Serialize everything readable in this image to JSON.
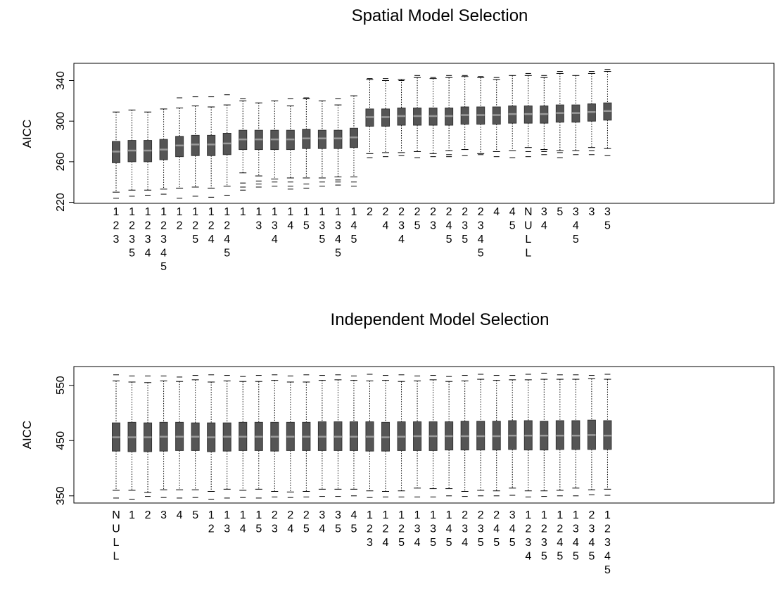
{
  "chart_data": [
    {
      "type": "box",
      "title": "Spatial Model Selection",
      "xlabel": "",
      "ylabel": "AICC",
      "ylim": [
        219,
        357
      ],
      "yticks": [
        220,
        260,
        300,
        340
      ],
      "grid": false,
      "categories": [
        "123",
        "1235",
        "1234",
        "12345",
        "12",
        "125",
        "124",
        "1245",
        "1",
        "13",
        "134",
        "14",
        "15",
        "135",
        "1345",
        "145",
        "2",
        "24",
        "234",
        "25",
        "23",
        "245",
        "235",
        "2345",
        "4",
        "45",
        "NULL",
        "34",
        "5",
        "345",
        "3",
        "35"
      ],
      "boxes": [
        {
          "min": 230,
          "q1": 259,
          "median": 270,
          "q3": 280,
          "max": 309,
          "outliers": [
            224
          ]
        },
        {
          "min": 232,
          "q1": 260,
          "median": 271,
          "q3": 281,
          "max": 311,
          "outliers": [
            226
          ]
        },
        {
          "min": 232,
          "q1": 260,
          "median": 271,
          "q3": 281,
          "max": 309,
          "outliers": [
            227
          ]
        },
        {
          "min": 233,
          "q1": 262,
          "median": 272,
          "q3": 282,
          "max": 312,
          "outliers": [
            228
          ]
        },
        {
          "min": 234,
          "q1": 265,
          "median": 276,
          "q3": 285,
          "max": 313,
          "outliers": [
            224,
            323
          ]
        },
        {
          "min": 235,
          "q1": 266,
          "median": 277,
          "q3": 286,
          "max": 315,
          "outliers": [
            226,
            324
          ]
        },
        {
          "min": 234,
          "q1": 266,
          "median": 277,
          "q3": 286,
          "max": 314,
          "outliers": [
            225,
            324
          ]
        },
        {
          "min": 236,
          "q1": 267,
          "median": 278,
          "q3": 288,
          "max": 316,
          "outliers": [
            227,
            326
          ]
        },
        {
          "min": 249,
          "q1": 272,
          "median": 282,
          "q3": 291,
          "max": 320,
          "outliers": [
            239,
            235,
            232,
            322
          ]
        },
        {
          "min": 246,
          "q1": 272,
          "median": 282,
          "q3": 291,
          "max": 318,
          "outliers": [
            241,
            238,
            235
          ]
        },
        {
          "min": 243,
          "q1": 272,
          "median": 282,
          "q3": 291,
          "max": 320,
          "outliers": [
            236,
            240
          ]
        },
        {
          "min": 244,
          "q1": 272,
          "median": 282,
          "q3": 291,
          "max": 315,
          "outliers": [
            240,
            236,
            233,
            322
          ]
        },
        {
          "min": 244,
          "q1": 273,
          "median": 283,
          "q3": 292,
          "max": 322,
          "outliers": [
            238,
            234,
            323
          ]
        },
        {
          "min": 244,
          "q1": 273,
          "median": 283,
          "q3": 291,
          "max": 320,
          "outliers": [
            240,
            236
          ]
        },
        {
          "min": 245,
          "q1": 273,
          "median": 283,
          "q3": 291,
          "max": 316,
          "outliers": [
            240,
            237,
            242,
            322
          ]
        },
        {
          "min": 245,
          "q1": 274,
          "median": 284,
          "q3": 293,
          "max": 325,
          "outliers": [
            240,
            236
          ]
        },
        {
          "min": 268,
          "q1": 295,
          "median": 304,
          "q3": 312,
          "max": 341,
          "outliers": [
            264,
            342
          ]
        },
        {
          "min": 269,
          "q1": 295,
          "median": 304,
          "q3": 312,
          "max": 340,
          "outliers": [
            265,
            342
          ]
        },
        {
          "min": 269,
          "q1": 296,
          "median": 305,
          "q3": 313,
          "max": 341,
          "outliers": [
            266,
            340
          ]
        },
        {
          "min": 270,
          "q1": 296,
          "median": 305,
          "q3": 313,
          "max": 343,
          "outliers": [
            264,
            345
          ]
        },
        {
          "min": 268,
          "q1": 296,
          "median": 305,
          "q3": 313,
          "max": 342,
          "outliers": [
            265,
            343
          ]
        },
        {
          "min": 271,
          "q1": 296,
          "median": 305,
          "q3": 313,
          "max": 343,
          "outliers": [
            265,
            267,
            345
          ]
        },
        {
          "min": 272,
          "q1": 297,
          "median": 306,
          "q3": 314,
          "max": 344,
          "outliers": [
            266,
            345
          ]
        },
        {
          "min": 268,
          "q1": 297,
          "median": 306,
          "q3": 314,
          "max": 343,
          "outliers": [
            267,
            344
          ]
        },
        {
          "min": 270,
          "q1": 297,
          "median": 306,
          "q3": 314,
          "max": 341,
          "outliers": [
            265,
            343
          ]
        },
        {
          "min": 271,
          "q1": 298,
          "median": 307,
          "q3": 315,
          "max": 345,
          "outliers": [
            264
          ]
        },
        {
          "min": 274,
          "q1": 298,
          "median": 307,
          "q3": 315,
          "max": 345,
          "outliers": [
            265,
            270,
            347
          ]
        },
        {
          "min": 272,
          "q1": 298,
          "median": 307,
          "q3": 315,
          "max": 343,
          "outliers": [
            267,
            270,
            345
          ]
        },
        {
          "min": 271,
          "q1": 299,
          "median": 308,
          "q3": 316,
          "max": 347,
          "outliers": [
            264,
            269,
            349
          ]
        },
        {
          "min": 271,
          "q1": 299,
          "median": 308,
          "q3": 316,
          "max": 345,
          "outliers": [
            267
          ]
        },
        {
          "min": 274,
          "q1": 300,
          "median": 309,
          "q3": 317,
          "max": 347,
          "outliers": [
            267,
            271,
            349
          ]
        },
        {
          "min": 273,
          "q1": 301,
          "median": 310,
          "q3": 318,
          "max": 349,
          "outliers": [
            266,
            351
          ]
        }
      ]
    },
    {
      "type": "box",
      "title": "Independent Model Selection",
      "xlabel": "",
      "ylabel": "AICC",
      "ylim": [
        337,
        584
      ],
      "yticks": [
        350,
        450,
        550
      ],
      "grid": false,
      "categories": [
        "NULL",
        "1",
        "2",
        "3",
        "4",
        "5",
        "12",
        "13",
        "14",
        "15",
        "23",
        "24",
        "25",
        "34",
        "35",
        "45",
        "123",
        "124",
        "125",
        "134",
        "135",
        "145",
        "234",
        "235",
        "245",
        "345",
        "1234",
        "1235",
        "1245",
        "1345",
        "2345",
        "12345"
      ],
      "boxes": [
        {
          "min": 360,
          "q1": 431,
          "median": 456,
          "q3": 482,
          "max": 558,
          "outliers": [
            346,
            569
          ]
        },
        {
          "min": 360,
          "q1": 430,
          "median": 456,
          "q3": 483,
          "max": 556,
          "outliers": [
            344,
            567
          ]
        },
        {
          "min": 356,
          "q1": 430,
          "median": 456,
          "q3": 482,
          "max": 555,
          "outliers": [
            349,
            567
          ]
        },
        {
          "min": 361,
          "q1": 431,
          "median": 457,
          "q3": 483,
          "max": 558,
          "outliers": [
            347,
            567
          ]
        },
        {
          "min": 361,
          "q1": 432,
          "median": 457,
          "q3": 483,
          "max": 557,
          "outliers": [
            346,
            565
          ]
        },
        {
          "min": 361,
          "q1": 432,
          "median": 457,
          "q3": 482,
          "max": 560,
          "outliers": [
            347,
            568
          ]
        },
        {
          "min": 358,
          "q1": 430,
          "median": 456,
          "q3": 482,
          "max": 556,
          "outliers": [
            344,
            569
          ]
        },
        {
          "min": 362,
          "q1": 431,
          "median": 457,
          "q3": 482,
          "max": 558,
          "outliers": [
            346,
            568
          ]
        },
        {
          "min": 360,
          "q1": 432,
          "median": 457,
          "q3": 483,
          "max": 557,
          "outliers": [
            347,
            566
          ]
        },
        {
          "min": 362,
          "q1": 432,
          "median": 457,
          "q3": 483,
          "max": 557,
          "outliers": [
            346,
            568
          ]
        },
        {
          "min": 358,
          "q1": 431,
          "median": 457,
          "q3": 483,
          "max": 559,
          "outliers": [
            348,
            569
          ]
        },
        {
          "min": 357,
          "q1": 432,
          "median": 457,
          "q3": 483,
          "max": 556,
          "outliers": [
            347,
            567
          ]
        },
        {
          "min": 358,
          "q1": 432,
          "median": 457,
          "q3": 483,
          "max": 556,
          "outliers": [
            348,
            569
          ]
        },
        {
          "min": 362,
          "q1": 432,
          "median": 457,
          "q3": 484,
          "max": 559,
          "outliers": [
            349,
            568
          ]
        },
        {
          "min": 362,
          "q1": 432,
          "median": 457,
          "q3": 484,
          "max": 560,
          "outliers": [
            349,
            569
          ]
        },
        {
          "min": 362,
          "q1": 432,
          "median": 457,
          "q3": 484,
          "max": 559,
          "outliers": [
            350,
            567
          ]
        },
        {
          "min": 359,
          "q1": 431,
          "median": 457,
          "q3": 484,
          "max": 558,
          "outliers": [
            347,
            570
          ]
        },
        {
          "min": 358,
          "q1": 431,
          "median": 456,
          "q3": 483,
          "max": 559,
          "outliers": [
            348,
            568
          ]
        },
        {
          "min": 359,
          "q1": 432,
          "median": 457,
          "q3": 484,
          "max": 557,
          "outliers": [
            348,
            569
          ]
        },
        {
          "min": 364,
          "q1": 432,
          "median": 458,
          "q3": 484,
          "max": 558,
          "outliers": [
            348,
            567
          ]
        },
        {
          "min": 363,
          "q1": 432,
          "median": 458,
          "q3": 484,
          "max": 560,
          "outliers": [
            348,
            568
          ]
        },
        {
          "min": 363,
          "q1": 433,
          "median": 458,
          "q3": 484,
          "max": 557,
          "outliers": [
            350,
            566
          ]
        },
        {
          "min": 358,
          "q1": 433,
          "median": 458,
          "q3": 485,
          "max": 558,
          "outliers": [
            349,
            568
          ]
        },
        {
          "min": 360,
          "q1": 433,
          "median": 458,
          "q3": 485,
          "max": 561,
          "outliers": [
            350,
            570
          ]
        },
        {
          "min": 359,
          "q1": 433,
          "median": 458,
          "q3": 485,
          "max": 559,
          "outliers": [
            350,
            568
          ]
        },
        {
          "min": 364,
          "q1": 434,
          "median": 459,
          "q3": 486,
          "max": 560,
          "outliers": [
            351,
            568
          ]
        },
        {
          "min": 359,
          "q1": 433,
          "median": 459,
          "q3": 486,
          "max": 560,
          "outliers": [
            348,
            570
          ]
        },
        {
          "min": 359,
          "q1": 433,
          "median": 459,
          "q3": 485,
          "max": 561,
          "outliers": [
            349,
            572
          ]
        },
        {
          "min": 360,
          "q1": 434,
          "median": 459,
          "q3": 486,
          "max": 561,
          "outliers": [
            350,
            569
          ]
        },
        {
          "min": 364,
          "q1": 434,
          "median": 459,
          "q3": 486,
          "max": 561,
          "outliers": [
            350,
            569
          ]
        },
        {
          "min": 361,
          "q1": 434,
          "median": 460,
          "q3": 487,
          "max": 562,
          "outliers": [
            352,
            568
          ]
        },
        {
          "min": 362,
          "q1": 434,
          "median": 459,
          "q3": 486,
          "max": 561,
          "outliers": [
            351,
            570
          ]
        }
      ]
    }
  ],
  "colors": {
    "box_fill": "#555555",
    "box_border": "#333333",
    "median": "#9a9a9a",
    "whisker": "#000000",
    "axes": "#000000",
    "background": "#ffffff"
  }
}
